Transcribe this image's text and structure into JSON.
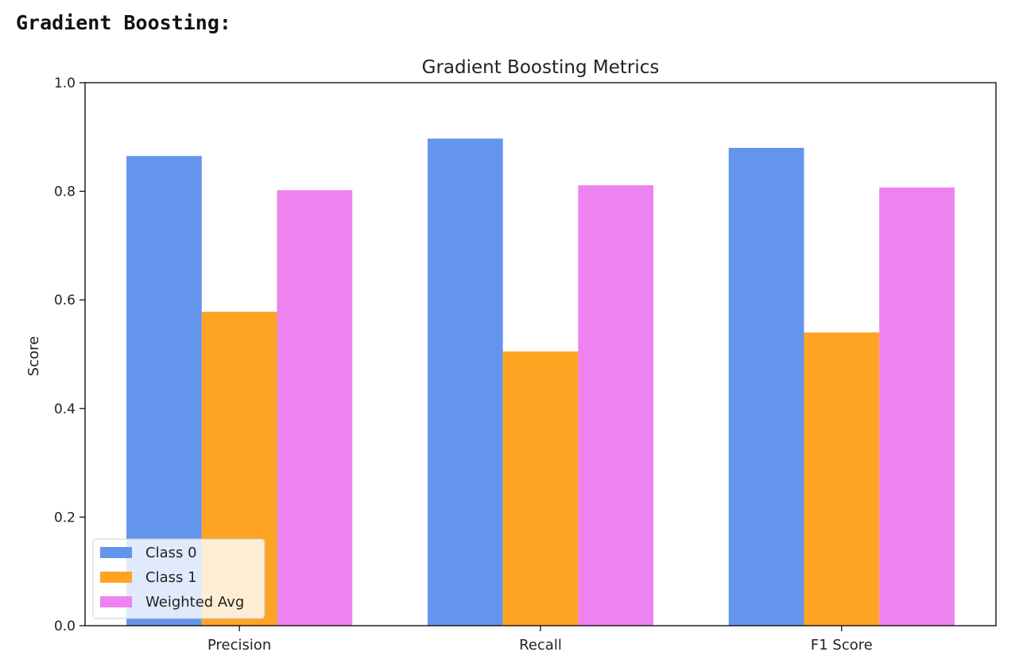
{
  "header": {
    "title": "Gradient Boosting:"
  },
  "chart_data": {
    "type": "bar",
    "title": "Gradient Boosting Metrics",
    "xlabel": "",
    "ylabel": "Score",
    "ylim": [
      0,
      1.0
    ],
    "yticks": [
      "0.0",
      "0.2",
      "0.4",
      "0.6",
      "0.8",
      "1.0"
    ],
    "categories": [
      "Precision",
      "Recall",
      "F1 Score"
    ],
    "series": [
      {
        "name": "Class 0",
        "color": "#6495ED",
        "values": [
          0.865,
          0.897,
          0.88
        ]
      },
      {
        "name": "Class 1",
        "color": "#FFA323",
        "values": [
          0.578,
          0.505,
          0.54
        ]
      },
      {
        "name": "Weighted Avg",
        "color": "#EE82EE",
        "values": [
          0.802,
          0.811,
          0.807
        ]
      }
    ],
    "legend_position": "lower-left",
    "grid": false
  }
}
